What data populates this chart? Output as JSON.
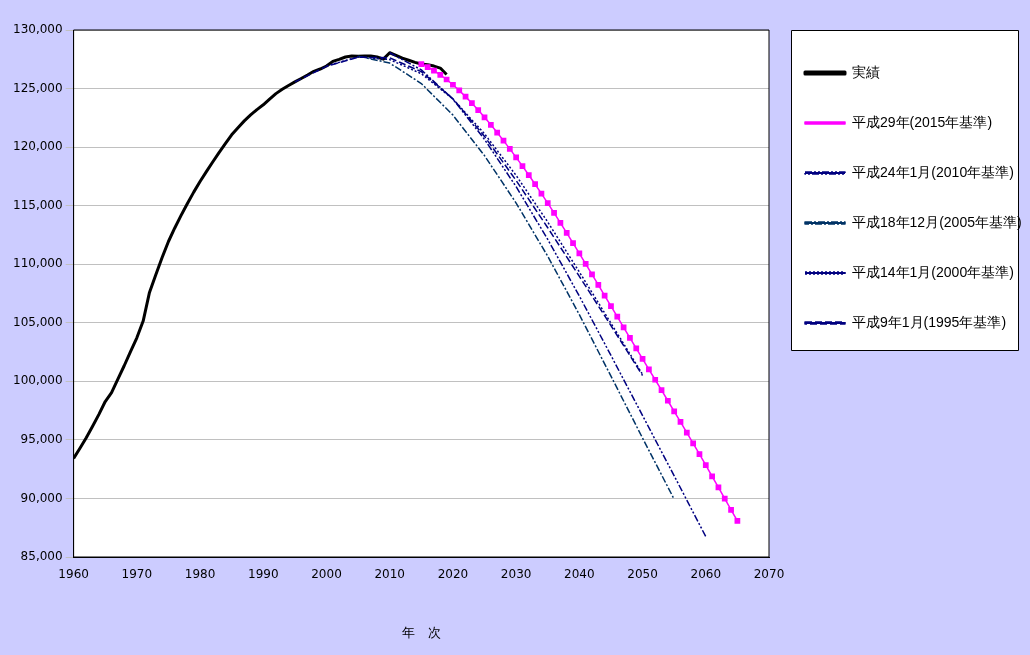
{
  "chart_data": {
    "type": "line",
    "xlabel": "年　次",
    "xlim": [
      1960,
      2070
    ],
    "xticks": [
      1960,
      1970,
      1980,
      1990,
      2000,
      2010,
      2020,
      2030,
      2040,
      2050,
      2060,
      2070
    ],
    "ylim": [
      85000,
      130000
    ],
    "yticks": [
      {
        "value": 85000,
        "label": "85,000"
      },
      {
        "value": 90000,
        "label": "90,000"
      },
      {
        "value": 95000,
        "label": "95,000"
      },
      {
        "value": 100000,
        "label": "100,000"
      },
      {
        "value": 105000,
        "label": "105,000"
      },
      {
        "value": 110000,
        "label": "110,000"
      },
      {
        "value": 115000,
        "label": "115,000"
      },
      {
        "value": 120000,
        "label": "120,000"
      },
      {
        "value": 125000,
        "label": "125,000"
      },
      {
        "value": 130000,
        "label": "130,000"
      }
    ],
    "grid": "y",
    "legend": "right",
    "series": [
      {
        "name": "実績",
        "color": "#000000",
        "line_style": "solid",
        "marker": "none",
        "x": [
          1960,
          1961,
          1962,
          1963,
          1964,
          1965,
          1966,
          1967,
          1968,
          1969,
          1970,
          1971,
          1972,
          1973,
          1974,
          1975,
          1976,
          1977,
          1978,
          1979,
          1980,
          1981,
          1982,
          1983,
          1984,
          1985,
          1986,
          1987,
          1988,
          1989,
          1990,
          1991,
          1992,
          1993,
          1994,
          1995,
          1996,
          1997,
          1998,
          1999,
          2000,
          2001,
          2002,
          2003,
          2004,
          2005,
          2006,
          2007,
          2008,
          2009,
          2010,
          2011,
          2012,
          2013,
          2014,
          2015,
          2016,
          2017,
          2018,
          2019
        ],
        "values": [
          93419,
          94287,
          95181,
          96156,
          97182,
          98275,
          99036,
          100196,
          101331,
          102536,
          103720,
          105145,
          107595,
          109104,
          110573,
          111940,
          113094,
          114165,
          115190,
          116155,
          117060,
          117902,
          118728,
          119536,
          120305,
          121049,
          121660,
          122239,
          122745,
          123205,
          123611,
          124101,
          124567,
          124938,
          125265,
          125570,
          125859,
          126157,
          126472,
          126667,
          126926,
          127316,
          127486,
          127694,
          127787,
          127768,
          127770,
          127771,
          127692,
          127510,
          128057,
          127834,
          127593,
          127414,
          127237,
          127095,
          127042,
          126919,
          126749,
          126200
        ]
      },
      {
        "name": "平成29年(2015年基準)",
        "color": "#ff00ff",
        "line_style": "solid",
        "marker": "square",
        "x": [
          2015,
          2016,
          2017,
          2018,
          2019,
          2020,
          2021,
          2022,
          2023,
          2024,
          2025,
          2026,
          2027,
          2028,
          2029,
          2030,
          2031,
          2032,
          2033,
          2034,
          2035,
          2036,
          2037,
          2038,
          2039,
          2040,
          2041,
          2042,
          2043,
          2044,
          2045,
          2046,
          2047,
          2048,
          2049,
          2050,
          2051,
          2052,
          2053,
          2054,
          2055,
          2056,
          2057,
          2058,
          2059,
          2060,
          2061,
          2062,
          2063,
          2064,
          2065
        ],
        "values": [
          127095,
          126838,
          126532,
          126177,
          125773,
          125325,
          124836,
          124310,
          123751,
          123161,
          122544,
          121903,
          121240,
          120555,
          119850,
          119125,
          118380,
          117616,
          116833,
          116033,
          115216,
          114383,
          113535,
          112674,
          111801,
          110919,
          110028,
          109131,
          108229,
          107326,
          106421,
          105518,
          104616,
          103716,
          102819,
          101923,
          101029,
          100135,
          99240,
          98342,
          97441,
          96535,
          95625,
          94711,
          93790,
          92840,
          91890,
          90939,
          89986,
          89032,
          88077
        ]
      },
      {
        "name": "平成24年1月(2010年基準)",
        "color": "#000080",
        "line_style": "dashdotdot",
        "marker": "none",
        "x": [
          2010,
          2015,
          2020,
          2025,
          2030,
          2035,
          2040,
          2045,
          2050,
          2055,
          2060
        ],
        "values": [
          128057,
          126597,
          124100,
          120659,
          116618,
          112124,
          107276,
          102210,
          97076,
          91933,
          86737
        ]
      },
      {
        "name": "平成18年12月(2005年基準)",
        "color": "#003366",
        "line_style": "dashdot",
        "marker": "none",
        "x": [
          2005,
          2010,
          2015,
          2020,
          2025,
          2030,
          2035,
          2040,
          2045,
          2050,
          2055
        ],
        "values": [
          127768,
          127176,
          125430,
          122735,
          119270,
          115224,
          110679,
          105695,
          100443,
          95152,
          89930
        ]
      },
      {
        "name": "平成14年1月(2000年基準)",
        "color": "#000080",
        "line_style": "dotted",
        "marker": "none",
        "x": [
          2000,
          2005,
          2010,
          2015,
          2020,
          2025,
          2030,
          2035,
          2040,
          2045,
          2050
        ],
        "values": [
          126926,
          127708,
          127473,
          126266,
          124107,
          121136,
          117580,
          113602,
          109338,
          104960,
          100593
        ]
      },
      {
        "name": "平成9年1月(1995年基準)",
        "color": "#000080",
        "line_style": "dashed",
        "marker": "none",
        "x": [
          1995,
          2000,
          2005,
          2010,
          2015,
          2020,
          2025,
          2030,
          2035,
          2040,
          2045,
          2050
        ],
        "values": [
          125570,
          126892,
          127684,
          127623,
          126444,
          124133,
          120913,
          117149,
          113114,
          108964,
          104758,
          100496
        ]
      }
    ]
  }
}
